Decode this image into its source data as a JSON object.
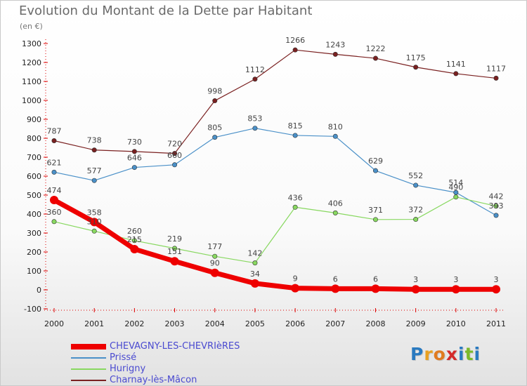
{
  "title": "Evolution du Montant de la Dette par Habitant",
  "subtitle": "(en €)",
  "chart_data": {
    "type": "line",
    "title": "Evolution du Montant de la Dette par Habitant",
    "subtitle": "(en €)",
    "xlabel": "",
    "ylabel": "",
    "x": [
      "2000",
      "2001",
      "2002",
      "2003",
      "2004",
      "2005",
      "2006",
      "2007",
      "2008",
      "2009",
      "2010",
      "2011"
    ],
    "yticks": [
      -100,
      0,
      100,
      200,
      300,
      400,
      500,
      600,
      700,
      800,
      900,
      1000,
      1100,
      1200,
      1300
    ],
    "ylim": [
      -100,
      1300
    ],
    "grid": false,
    "legend_position": "bottom-left",
    "series": [
      {
        "name": "CHEVAGNY-LES-CHEVRIèRES",
        "color": "#ee0000",
        "values": [
          474,
          358,
          215,
          151,
          90,
          34,
          9,
          6,
          6,
          3,
          3,
          3
        ]
      },
      {
        "name": "Prissé",
        "color": "#4a90c8",
        "values": [
          621,
          577,
          646,
          660,
          805,
          853,
          815,
          810,
          629,
          552,
          514,
          393
        ]
      },
      {
        "name": "Hurigny",
        "color": "#88d860",
        "values": [
          360,
          310,
          260,
          219,
          177,
          142,
          436,
          406,
          371,
          372,
          490,
          442
        ]
      },
      {
        "name": "Charnay-lès-Mâcon",
        "color": "#7a2020",
        "values": [
          787,
          738,
          730,
          720,
          998,
          1112,
          1266,
          1243,
          1222,
          1175,
          1141,
          1117
        ]
      }
    ]
  },
  "logo": {
    "letters": [
      "P",
      "r",
      "o",
      "x",
      "i",
      "t",
      "i"
    ],
    "colors": [
      "#2a7ac0",
      "#e8a020",
      "#e07b20",
      "#d42a2a",
      "#2a7ac0",
      "#7cba2a",
      "#2a7ac0"
    ]
  }
}
